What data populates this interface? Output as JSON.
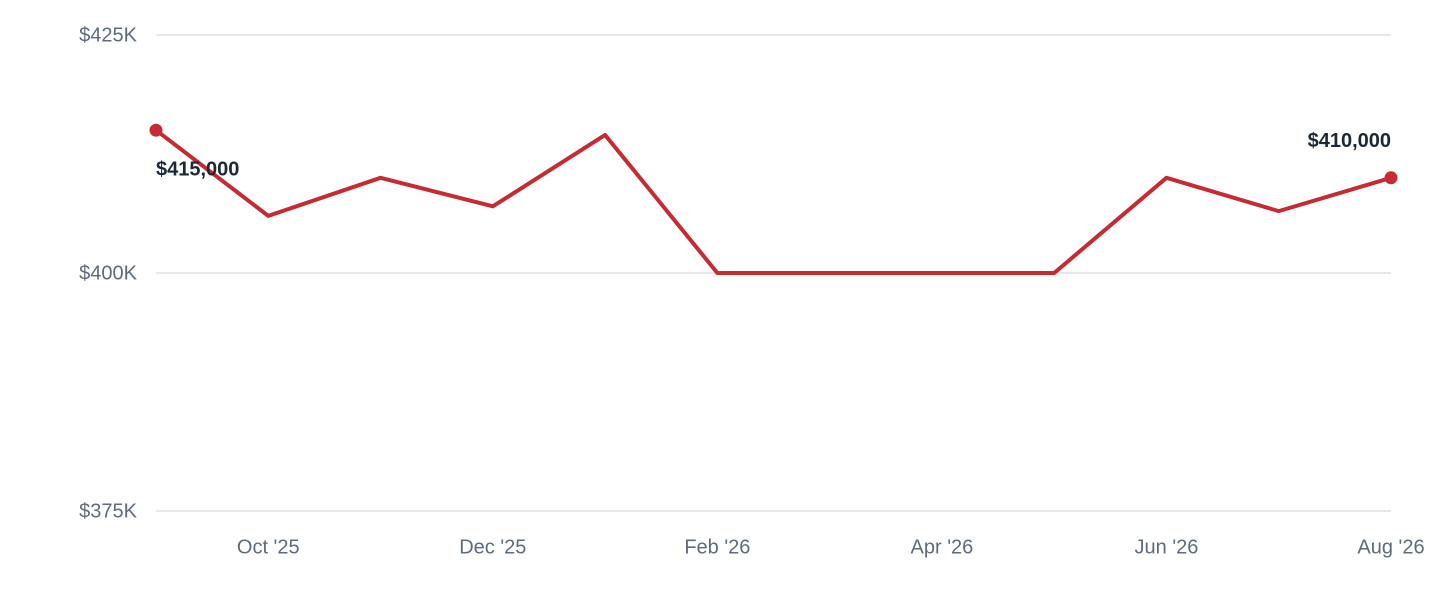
{
  "chart_data": {
    "type": "line",
    "categories": [
      null,
      "Oct '25",
      null,
      "Dec '25",
      null,
      "Feb '26",
      null,
      "Apr '26",
      null,
      "Jun '26",
      null,
      "Aug '26"
    ],
    "values": [
      415000,
      406000,
      410000,
      407000,
      414500,
      400000,
      400000,
      400000,
      400000,
      410000,
      406500,
      410000
    ],
    "value_labels": [
      "$415,000",
      null,
      null,
      null,
      null,
      null,
      null,
      null,
      null,
      null,
      null,
      "$410,000"
    ],
    "color": "#c62a32",
    "ylim": [
      375000,
      425000
    ],
    "yticks": [
      {
        "value": 375000,
        "label": "$375K"
      },
      {
        "value": 400000,
        "label": "$400K"
      },
      {
        "value": 425000,
        "label": "$425K"
      }
    ],
    "grid": true
  }
}
